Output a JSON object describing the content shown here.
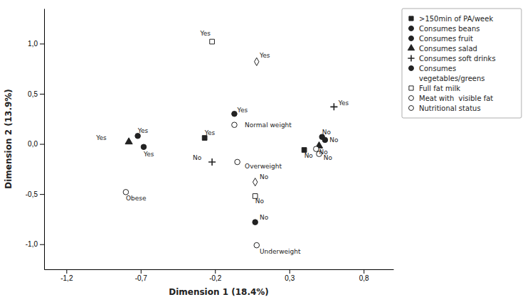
{
  "chart_data": {
    "type": "scatter",
    "xlabel": "Dimension 1 (18.4%)",
    "ylabel": "Dimension 2 (13.9%)",
    "xlim": [
      -1.35,
      1.0
    ],
    "ylim": [
      -1.25,
      1.35
    ],
    "xticks": [
      {
        "value": -1.2,
        "label": "-1,2"
      },
      {
        "value": -0.7,
        "label": "-0,7"
      },
      {
        "value": -0.2,
        "label": "-0,2"
      },
      {
        "value": 0.3,
        "label": "0,3"
      },
      {
        "value": 0.8,
        "label": "0,8"
      }
    ],
    "yticks": [
      {
        "value": -1.0,
        "label": "-1,0"
      },
      {
        "value": -0.5,
        "label": "-0,5"
      },
      {
        "value": 0.0,
        "label": "0,0"
      },
      {
        "value": 0.5,
        "label": "0,5"
      },
      {
        "value": 1.0,
        "label": "1,0"
      }
    ],
    "grid": false,
    "x": [
      -0.22,
      0.08,
      -0.78,
      -0.72,
      -0.68,
      -0.27,
      -0.07,
      -0.07,
      0.6,
      0.52,
      0.54,
      0.5,
      0.4,
      0.48,
      0.5,
      -0.22,
      -0.05,
      0.07,
      -0.8,
      0.07,
      0.07,
      0.08
    ],
    "values": [
      1.02,
      0.82,
      0.02,
      0.08,
      -0.03,
      0.06,
      0.3,
      0.19,
      0.37,
      0.07,
      0.04,
      -0.02,
      -0.06,
      -0.05,
      -0.1,
      -0.18,
      -0.18,
      -0.38,
      -0.48,
      -0.52,
      -0.78,
      -1.01
    ],
    "markers": [
      "square-open",
      "diamond-open",
      "triangle",
      "circle",
      "circle",
      "square",
      "circle",
      "circle-open",
      "plus",
      "circle",
      "circle",
      "triangle",
      "square",
      "circle-open",
      "circle-open",
      "plus",
      "circle-open",
      "diamond-open",
      "circle-open",
      "square-open",
      "circle",
      "circle-open"
    ],
    "annotations": [
      {
        "text": "Yes",
        "x": -0.3,
        "y": 1.1
      },
      {
        "text": "Yes",
        "x": 0.1,
        "y": 0.88
      },
      {
        "text": "Yes",
        "x": -1.0,
        "y": 0.06
      },
      {
        "text": "Yes",
        "x": -0.72,
        "y": 0.13
      },
      {
        "text": "Yes",
        "x": -0.68,
        "y": -0.1
      },
      {
        "text": "Yes",
        "x": -0.27,
        "y": 0.11
      },
      {
        "text": "Yes",
        "x": -0.05,
        "y": 0.34
      },
      {
        "text": "Normal weight",
        "x": 0.0,
        "y": 0.19
      },
      {
        "text": "Yes",
        "x": 0.63,
        "y": 0.41
      },
      {
        "text": "No",
        "x": 0.52,
        "y": 0.12
      },
      {
        "text": "No",
        "x": 0.57,
        "y": 0.04
      },
      {
        "text": "No",
        "x": 0.5,
        "y": -0.08
      },
      {
        "text": "No",
        "x": 0.4,
        "y": -0.12
      },
      {
        "text": "No",
        "x": 0.53,
        "y": -0.14
      },
      {
        "text": "No",
        "x": -0.35,
        "y": -0.14
      },
      {
        "text": "Overweight",
        "x": 0.0,
        "y": -0.22
      },
      {
        "text": "No",
        "x": 0.1,
        "y": -0.33
      },
      {
        "text": "Obese",
        "x": -0.8,
        "y": -0.54
      },
      {
        "text": "No",
        "x": 0.07,
        "y": -0.57
      },
      {
        "text": "No",
        "x": 0.1,
        "y": -0.73
      },
      {
        "text": "Underweight",
        "x": 0.1,
        "y": -1.07
      }
    ],
    "legend": "upper right",
    "legend_entries": [
      {
        "name": ">150min of PA/week",
        "marker": "square"
      },
      {
        "name": "Consumes beans",
        "marker": "circle"
      },
      {
        "name": "Consumes fruit",
        "marker": "circle"
      },
      {
        "name": "Consumes salad",
        "marker": "triangle"
      },
      {
        "name": "Consumes soft drinks",
        "marker": "plus"
      },
      {
        "name": "Consumes\nvegetables/greens",
        "marker": "circle"
      },
      {
        "name": "Full fat milk",
        "marker": "square-open"
      },
      {
        "name": "Meat with  visible fat",
        "marker": "circle-open"
      },
      {
        "name": "Nutritional status",
        "marker": "circle-open"
      }
    ]
  }
}
